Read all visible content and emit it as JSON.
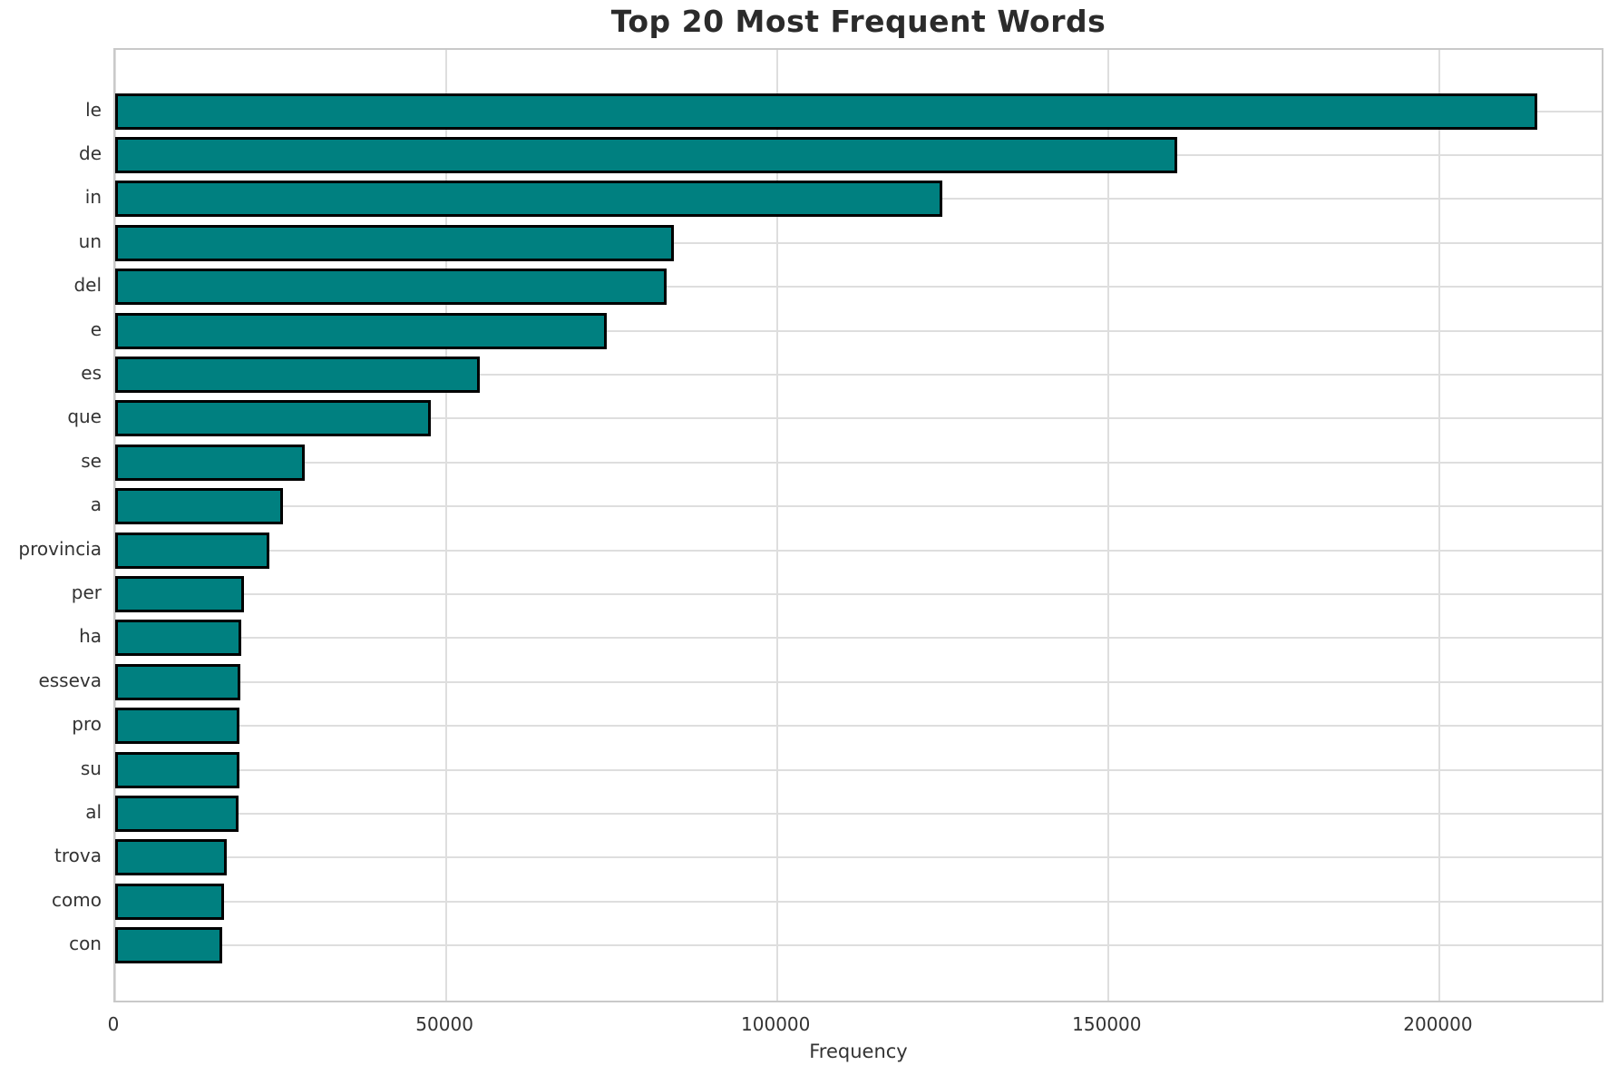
{
  "chart_data": {
    "type": "bar",
    "orientation": "horizontal",
    "title": "Top 20 Most Frequent Words",
    "xlabel": "Frequency",
    "ylabel": "",
    "categories": [
      "le",
      "de",
      "in",
      "un",
      "del",
      "e",
      "es",
      "que",
      "se",
      "a",
      "provincia",
      "per",
      "ha",
      "esseva",
      "pro",
      "su",
      "al",
      "trova",
      "como",
      "con"
    ],
    "values": [
      214700,
      160400,
      124900,
      84400,
      83300,
      74200,
      55000,
      47600,
      28600,
      25300,
      23300,
      19500,
      19000,
      18900,
      18800,
      18800,
      18600,
      16900,
      16500,
      16200
    ],
    "xlim": [
      0,
      225000
    ],
    "xticks": [
      0,
      50000,
      100000,
      150000,
      200000
    ],
    "xtick_labels": [
      "0",
      "50000",
      "100000",
      "150000",
      "200000"
    ],
    "grid": true,
    "legend": false,
    "colors": {
      "bar_fill": "#008080",
      "bar_edge": "#000000",
      "grid": "#dedede",
      "spine": "#c9c9c9",
      "title_text": "#2b2b2b",
      "tick_text": "#333333",
      "background": "#ffffff"
    }
  }
}
